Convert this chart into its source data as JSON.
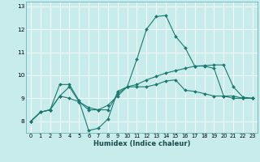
{
  "xlabel": "Humidex (Indice chaleur)",
  "background_color": "#c8ecec",
  "grid_color": "#ffffff",
  "line_color": "#1a7a6e",
  "xlim": [
    -0.5,
    23.5
  ],
  "ylim": [
    7.5,
    13.2
  ],
  "yticks": [
    8,
    9,
    10,
    11,
    12,
    13
  ],
  "xticks": [
    0,
    1,
    2,
    3,
    4,
    5,
    6,
    7,
    8,
    9,
    10,
    11,
    12,
    13,
    14,
    15,
    16,
    17,
    18,
    19,
    20,
    21,
    22,
    23
  ],
  "series": [
    [
      8.0,
      8.4,
      8.5,
      9.6,
      9.6,
      8.9,
      7.6,
      7.7,
      8.1,
      9.3,
      9.5,
      10.7,
      12.0,
      12.55,
      12.6,
      11.7,
      11.2,
      10.4,
      10.4,
      10.3,
      9.1,
      9.1,
      9.0,
      9.0
    ],
    [
      8.0,
      8.4,
      8.5,
      9.1,
      9.0,
      8.85,
      8.6,
      8.5,
      8.5,
      9.2,
      9.5,
      9.5,
      9.5,
      9.6,
      9.75,
      9.8,
      9.35,
      9.3,
      9.2,
      9.1,
      9.1,
      9.0,
      9.0,
      9.0
    ],
    [
      8.0,
      8.4,
      8.5,
      9.1,
      9.5,
      8.85,
      8.5,
      8.5,
      8.7,
      9.1,
      9.5,
      9.6,
      9.8,
      9.95,
      10.1,
      10.2,
      10.3,
      10.4,
      10.42,
      10.45,
      10.45,
      9.5,
      9.05,
      9.0
    ]
  ],
  "line_styles": [
    "-",
    "-",
    "-"
  ],
  "xlabel_fontsize": 6.0,
  "tick_fontsize": 4.8,
  "linewidth": 0.8,
  "markersize": 2.0
}
